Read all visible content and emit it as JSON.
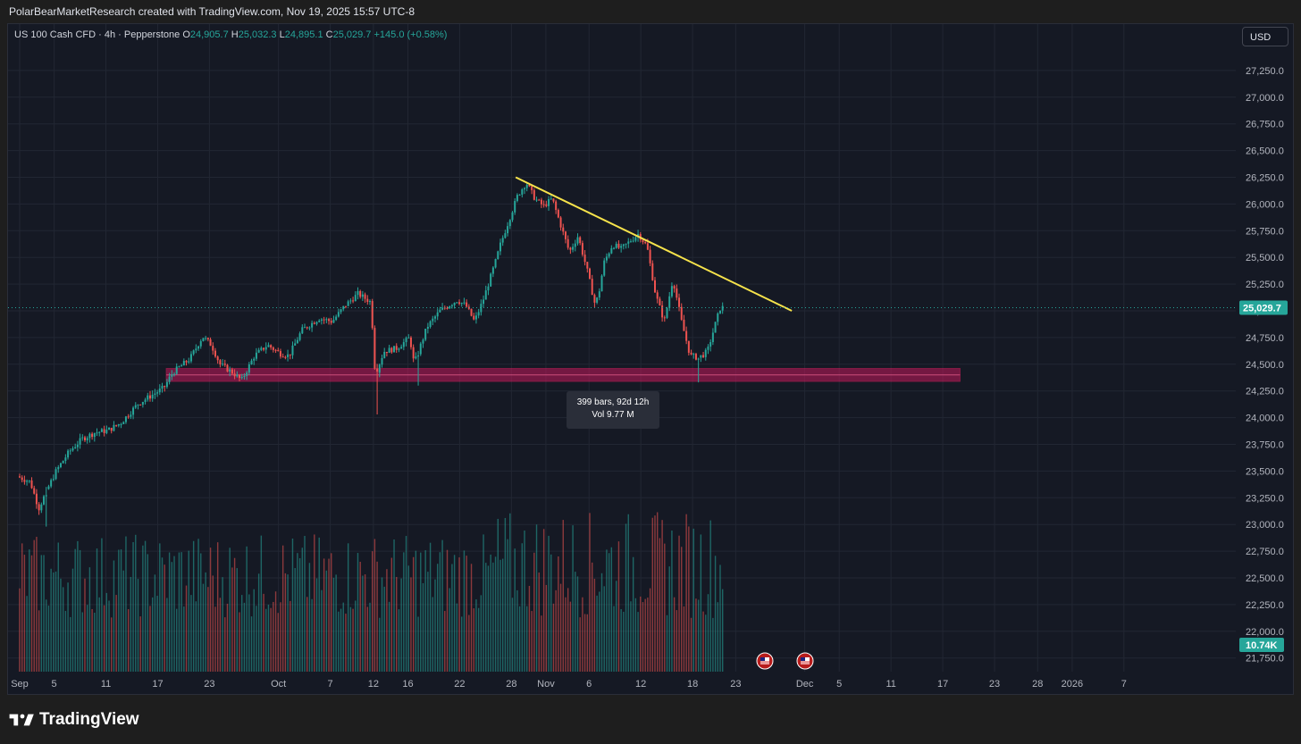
{
  "header": {
    "credit": "PolarBearMarketResearch created with TradingView.com, Nov 19, 2025 15:57 UTC-8"
  },
  "legend": {
    "symbol": "US 100 Cash CFD · 4h · Pepperstone",
    "o_label": "O",
    "o_value": "24,905.7",
    "h_label": "H",
    "h_value": "25,032.3",
    "l_label": "L",
    "l_value": "24,895.1",
    "c_label": "C",
    "c_value": "25,029.7",
    "change": "+145.0 (+0.58%)"
  },
  "currency": "USD",
  "tooltip": {
    "line1": "399 bars, 92d 12h",
    "line2": "Vol 9.77 M"
  },
  "brand": {
    "name": "TradingView"
  },
  "colors": {
    "up": "#26a69a",
    "down": "#ef5350",
    "trendline": "#f7e34b",
    "zone": "#c2185b",
    "last_price_bg": "#26a69a"
  },
  "icons": {
    "event_markers": "us-flag-icon"
  },
  "chart_data": {
    "type": "candlestick",
    "symbol": "US 100 Cash CFD",
    "timeframe": "4h",
    "last_price": "25,029.7",
    "last_volume": "10.74K",
    "y_ticks": [
      "27,250.0",
      "27,000.0",
      "26,750.0",
      "26,500.0",
      "26,250.0",
      "26,000.0",
      "25,750.0",
      "25,500.0",
      "25,250.0",
      "25,000.0",
      "24,750.0",
      "24,500.0",
      "24,250.0",
      "24,000.0",
      "23,750.0",
      "23,500.0",
      "23,250.0",
      "23,000.0",
      "22,750.0",
      "22,500.0",
      "22,250.0",
      "22,000.0",
      "21,750.0"
    ],
    "y_tick_values": [
      27250,
      27000,
      26750,
      26500,
      26250,
      26000,
      25750,
      25500,
      25250,
      25000,
      24750,
      24500,
      24250,
      24000,
      23750,
      23500,
      23250,
      23000,
      22750,
      22500,
      22250,
      22000,
      21750
    ],
    "x_ticks": [
      "Sep",
      "5",
      "11",
      "17",
      "23",
      "Oct",
      "7",
      "12",
      "16",
      "22",
      "28",
      "Nov",
      "6",
      "12",
      "18",
      "23",
      "Dec",
      "5",
      "11",
      "17",
      "23",
      "28",
      "2026",
      "7"
    ],
    "x_tick_days": [
      0,
      4,
      10,
      16,
      22,
      30,
      36,
      41,
      45,
      51,
      57,
      61,
      66,
      72,
      78,
      83,
      91,
      95,
      101,
      107,
      113,
      118,
      122,
      128
    ],
    "x_range_days": [
      0,
      138
    ],
    "y_range": [
      21600,
      27500
    ],
    "price_path": [
      [
        0,
        23450
      ],
      [
        1.5,
        23400
      ],
      [
        2.5,
        23150
      ],
      [
        3.5,
        23330
      ],
      [
        4.5,
        23500
      ],
      [
        6,
        23680
      ],
      [
        7.5,
        23800
      ],
      [
        9,
        23860
      ],
      [
        10.5,
        23880
      ],
      [
        12,
        23950
      ],
      [
        14,
        24130
      ],
      [
        16,
        24230
      ],
      [
        17,
        24280
      ],
      [
        18,
        24420
      ],
      [
        20,
        24550
      ],
      [
        21.5,
        24760
      ],
      [
        22.5,
        24680
      ],
      [
        23.5,
        24500
      ],
      [
        25,
        24420
      ],
      [
        26,
        24350
      ],
      [
        27.5,
        24580
      ],
      [
        29,
        24680
      ],
      [
        30.5,
        24600
      ],
      [
        31.5,
        24580
      ],
      [
        33,
        24820
      ],
      [
        35,
        24930
      ],
      [
        36.5,
        24900
      ],
      [
        38,
        25050
      ],
      [
        39.5,
        25160
      ],
      [
        41,
        25080
      ],
      [
        41.5,
        24400
      ],
      [
        42.5,
        24620
      ],
      [
        44,
        24650
      ],
      [
        45.5,
        24750
      ],
      [
        46,
        24500
      ],
      [
        47.5,
        24850
      ],
      [
        49,
        25000
      ],
      [
        51,
        25100
      ],
      [
        52,
        25050
      ],
      [
        53,
        24900
      ],
      [
        54,
        25100
      ],
      [
        54.8,
        25300
      ],
      [
        55.4,
        25450
      ],
      [
        56,
        25620
      ],
      [
        57,
        25850
      ],
      [
        58,
        26080
      ],
      [
        59,
        26200
      ],
      [
        60,
        26050
      ],
      [
        61,
        25980
      ],
      [
        62,
        26050
      ],
      [
        63,
        25800
      ],
      [
        64,
        25550
      ],
      [
        65,
        25700
      ],
      [
        66,
        25400
      ],
      [
        67,
        25050
      ],
      [
        67.5,
        25200
      ],
      [
        68,
        25450
      ],
      [
        69,
        25620
      ],
      [
        70,
        25580
      ],
      [
        71,
        25650
      ],
      [
        72,
        25720
      ],
      [
        73,
        25600
      ],
      [
        74,
        25150
      ],
      [
        75,
        24900
      ],
      [
        76,
        25300
      ],
      [
        77,
        24900
      ],
      [
        78,
        24580
      ],
      [
        79,
        24560
      ],
      [
        80,
        24620
      ],
      [
        81,
        24900
      ],
      [
        81.5,
        25030
      ]
    ],
    "support_zone": {
      "low": 24340,
      "high": 24460,
      "from_day": 17,
      "to_day": 109
    },
    "trendline": {
      "points": [
        [
          57.5,
          26250
        ],
        [
          89.5,
          25000
        ]
      ]
    },
    "volume_max": 16.0,
    "volume_note": "volume bars up to Nov 19"
  }
}
